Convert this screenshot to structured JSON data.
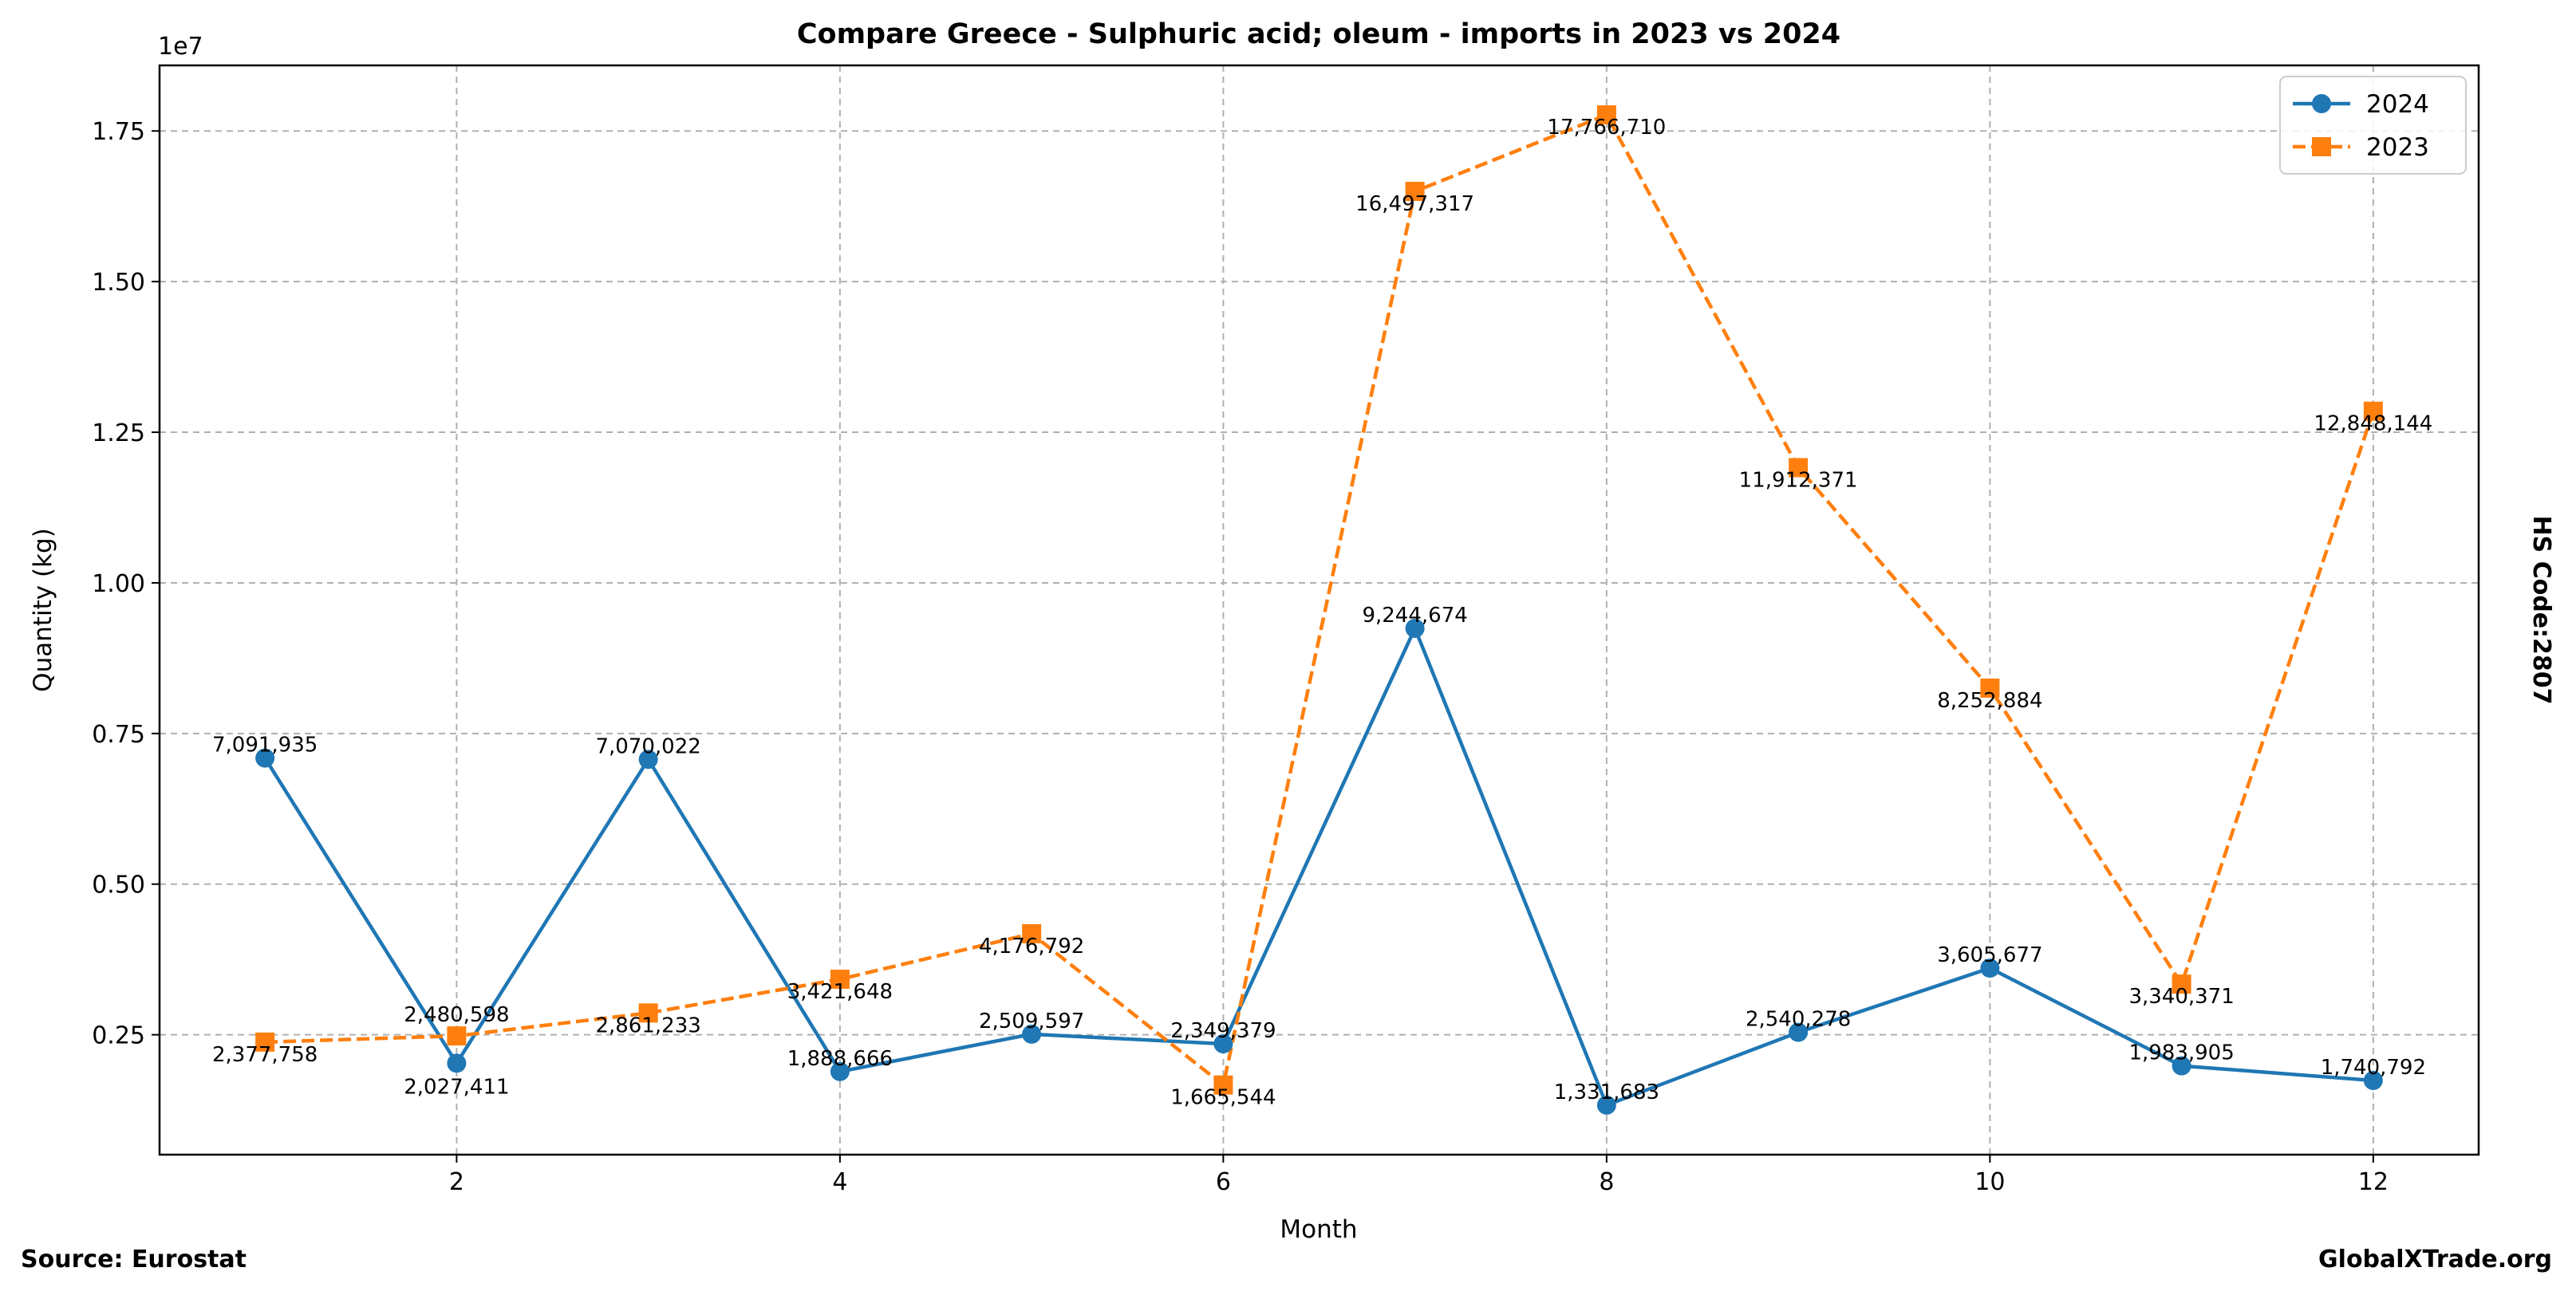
{
  "chart_data": {
    "type": "line",
    "title": "Compare Greece - Sulphuric acid; oleum - imports in 2023 vs 2024",
    "xlabel": "Month",
    "ylabel": "Quantity (kg)",
    "y_offset_label": "1e7",
    "x": [
      1,
      2,
      3,
      4,
      5,
      6,
      7,
      8,
      9,
      10,
      11,
      12
    ],
    "xlim": [
      0.45,
      12.55
    ],
    "ylim": [
      509932,
      18588461
    ],
    "xticks": [
      2,
      4,
      6,
      8,
      10,
      12
    ],
    "xtick_labels": [
      "2",
      "4",
      "6",
      "8",
      "10",
      "12"
    ],
    "yticks": [
      2500000,
      5000000,
      7500000,
      10000000,
      12500000,
      15000000,
      17500000
    ],
    "ytick_labels": [
      "0.25",
      "0.50",
      "0.75",
      "1.00",
      "1.25",
      "1.50",
      "1.75"
    ],
    "grid": true,
    "legend_position": "top-right",
    "series": [
      {
        "name": "2024",
        "color": "#1f77b4",
        "marker": "circle",
        "linestyle": "solid",
        "values": [
          7091935,
          2027411,
          7070022,
          1888666,
          2509597,
          2349379,
          9244674,
          1331683,
          2540278,
          3605677,
          1983905,
          1740792
        ],
        "labels": [
          "7,091,935",
          "2,027,411",
          "7,070,022",
          "1,888,666",
          "2,509,597",
          "2,349,379",
          "9,244,674",
          "1,331,683",
          "2,540,278",
          "3,605,677",
          "1,983,905",
          "1,740,792"
        ]
      },
      {
        "name": "2023",
        "color": "#ff7f0e",
        "marker": "square",
        "linestyle": "dashed",
        "values": [
          2377758,
          2480598,
          2861233,
          3421648,
          4176792,
          1665544,
          16497317,
          17766710,
          11912371,
          8252884,
          3340371,
          12848144
        ],
        "labels": [
          "2,377,758",
          "2,480,598",
          "2,861,233",
          "3,421,648",
          "4,176,792",
          "1,665,544",
          "16,497,317",
          "17,766,710",
          "11,912,371",
          "8,252,884",
          "3,340,371",
          "12,848,144"
        ]
      }
    ]
  },
  "side_label": "HS Code:2807",
  "footer": {
    "source": "Source: Eurostat",
    "site": "GlobalXTrade.org"
  }
}
